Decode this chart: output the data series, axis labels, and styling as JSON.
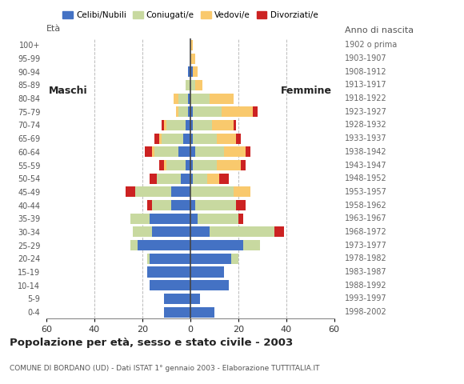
{
  "age_groups": [
    "0-4",
    "5-9",
    "10-14",
    "15-19",
    "20-24",
    "25-29",
    "30-34",
    "35-39",
    "40-44",
    "45-49",
    "50-54",
    "55-59",
    "60-64",
    "65-69",
    "70-74",
    "75-79",
    "80-84",
    "85-89",
    "90-94",
    "95-99",
    "100+"
  ],
  "birth_years": [
    "1998-2002",
    "1993-1997",
    "1988-1992",
    "1983-1987",
    "1978-1982",
    "1973-1977",
    "1968-1972",
    "1963-1967",
    "1958-1962",
    "1953-1957",
    "1948-1952",
    "1943-1947",
    "1938-1942",
    "1933-1937",
    "1928-1932",
    "1923-1927",
    "1918-1922",
    "1913-1917",
    "1908-1912",
    "1903-1907",
    "1902 o prima"
  ],
  "male": {
    "celibe": [
      11,
      11,
      17,
      18,
      17,
      22,
      16,
      17,
      8,
      8,
      4,
      2,
      5,
      3,
      2,
      1,
      1,
      0,
      1,
      0,
      0
    ],
    "coniugato": [
      0,
      0,
      0,
      0,
      1,
      3,
      8,
      8,
      8,
      15,
      10,
      8,
      10,
      9,
      8,
      4,
      4,
      2,
      0,
      0,
      0
    ],
    "vedovo": [
      0,
      0,
      0,
      0,
      0,
      0,
      0,
      0,
      0,
      0,
      0,
      1,
      1,
      1,
      1,
      1,
      2,
      0,
      0,
      0,
      0
    ],
    "divorziato": [
      0,
      0,
      0,
      0,
      0,
      0,
      0,
      0,
      2,
      4,
      3,
      2,
      3,
      2,
      1,
      0,
      0,
      0,
      0,
      0,
      0
    ]
  },
  "female": {
    "nubile": [
      10,
      4,
      16,
      14,
      17,
      22,
      8,
      3,
      2,
      0,
      1,
      1,
      2,
      1,
      1,
      1,
      0,
      0,
      1,
      0,
      0
    ],
    "coniugata": [
      0,
      0,
      0,
      0,
      3,
      7,
      27,
      17,
      17,
      18,
      6,
      10,
      12,
      10,
      8,
      12,
      8,
      2,
      0,
      0,
      0
    ],
    "vedova": [
      0,
      0,
      0,
      0,
      0,
      0,
      0,
      0,
      0,
      7,
      5,
      10,
      9,
      8,
      9,
      13,
      10,
      3,
      2,
      2,
      1
    ],
    "divorziata": [
      0,
      0,
      0,
      0,
      0,
      0,
      4,
      2,
      4,
      0,
      4,
      2,
      2,
      2,
      1,
      2,
      0,
      0,
      0,
      0,
      0
    ]
  },
  "colors": {
    "celibe": "#4472c4",
    "coniugato": "#c8d9a0",
    "vedovo": "#f9c96d",
    "divorziato": "#cc2222"
  },
  "title": "Popolazione per età, sesso e stato civile - 2003",
  "subtitle": "COMUNE DI BORDANO (UD) - Dati ISTAT 1° gennaio 2003 - Elaborazione TUTTITALIA.IT",
  "xlabel_left": "Maschi",
  "xlabel_right": "Femmine",
  "ylabel": "Età",
  "ylabel_right": "Anno di nascita",
  "xlim": 60,
  "legend_labels": [
    "Celibi/Nubili",
    "Coniugati/e",
    "Vedovi/e",
    "Divorziati/e"
  ],
  "bg_color": "#ffffff",
  "grid_color": "#aaaaaa"
}
